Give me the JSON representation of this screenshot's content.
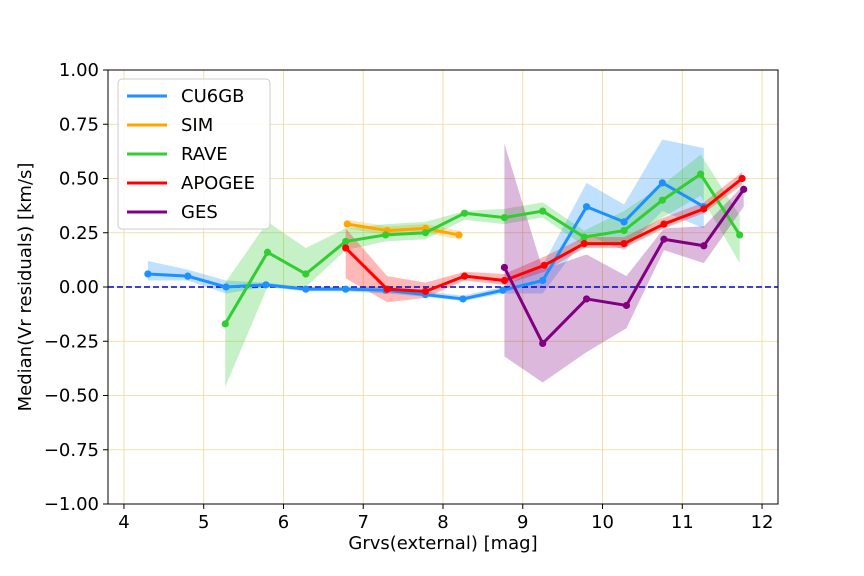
{
  "chart_data": {
    "type": "line",
    "title": "",
    "xlabel": "Grvs(external) [mag]",
    "ylabel": "Median(Vr residuals) [km/s]",
    "xlim": [
      3.8,
      12.2
    ],
    "ylim": [
      -1.0,
      1.0
    ],
    "xticks": [
      4,
      5,
      6,
      7,
      8,
      9,
      10,
      11,
      12
    ],
    "yticks": [
      -1.0,
      -0.75,
      -0.5,
      -0.25,
      0.0,
      0.25,
      0.5,
      0.75,
      1.0
    ],
    "xtick_labels": [
      "4",
      "5",
      "6",
      "7",
      "8",
      "9",
      "10",
      "11",
      "12"
    ],
    "ytick_labels": [
      "−1.00",
      "−0.75",
      "−0.50",
      "−0.25",
      "0.00",
      "0.25",
      "0.50",
      "0.75",
      "1.00"
    ],
    "grid": true,
    "grid_color": "#f0d890",
    "reference_line": {
      "y": 0.0,
      "color": "#0000cc",
      "style": "dashed"
    },
    "legend_position": "upper-left",
    "series": [
      {
        "name": "CU6GB",
        "color": "#1e90ff",
        "x": [
          4.3,
          4.8,
          5.28,
          5.78,
          6.28,
          6.78,
          7.28,
          7.78,
          8.25,
          8.75,
          9.25,
          9.8,
          10.27,
          10.75,
          11.27
        ],
        "y": [
          0.06,
          0.05,
          0.0,
          0.01,
          -0.01,
          -0.01,
          -0.015,
          -0.035,
          -0.055,
          -0.015,
          0.03,
          0.37,
          0.3,
          0.48,
          0.37
        ],
        "lower": [
          0.03,
          0.03,
          -0.03,
          0.0,
          -0.02,
          -0.02,
          -0.03,
          -0.045,
          -0.065,
          -0.03,
          -0.03,
          0.24,
          0.17,
          0.35,
          0.27
        ],
        "upper": [
          0.12,
          0.08,
          0.03,
          0.02,
          0.0,
          0.0,
          0.0,
          -0.02,
          -0.04,
          0.0,
          0.1,
          0.48,
          0.38,
          0.68,
          0.64
        ]
      },
      {
        "name": "SIM",
        "color": "#ffa500",
        "x": [
          6.8,
          7.3,
          7.78,
          8.2
        ],
        "y": [
          0.29,
          0.26,
          0.27,
          0.24
        ],
        "lower": [
          0.27,
          0.24,
          0.25,
          0.22
        ],
        "upper": [
          0.31,
          0.28,
          0.29,
          0.26
        ]
      },
      {
        "name": "RAVE",
        "color": "#32cd32",
        "x": [
          5.27,
          5.8,
          6.28,
          6.78,
          7.28,
          7.78,
          8.27,
          8.77,
          9.25,
          9.77,
          10.27,
          10.75,
          11.23,
          11.72
        ],
        "y": [
          -0.17,
          0.16,
          0.06,
          0.21,
          0.24,
          0.25,
          0.34,
          0.32,
          0.35,
          0.23,
          0.26,
          0.4,
          0.52,
          0.24
        ],
        "lower": [
          -0.46,
          0.0,
          0.0,
          0.17,
          0.21,
          0.22,
          0.31,
          0.29,
          0.32,
          0.19,
          0.19,
          0.32,
          0.42,
          0.11
        ],
        "upper": [
          0.02,
          0.3,
          0.18,
          0.27,
          0.29,
          0.3,
          0.35,
          0.36,
          0.39,
          0.26,
          0.35,
          0.47,
          0.61,
          0.33
        ]
      },
      {
        "name": "APOGEE",
        "color": "#ff0000",
        "x": [
          6.78,
          7.3,
          7.78,
          8.27,
          8.77,
          9.27,
          9.77,
          10.27,
          10.77,
          11.27,
          11.75
        ],
        "y": [
          0.18,
          -0.01,
          -0.02,
          0.05,
          0.03,
          0.1,
          0.2,
          0.2,
          0.29,
          0.36,
          0.5
        ],
        "lower": [
          0.04,
          -0.07,
          -0.05,
          0.03,
          0.01,
          0.07,
          0.18,
          0.18,
          0.27,
          0.34,
          0.47
        ],
        "upper": [
          0.27,
          0.05,
          0.02,
          0.07,
          0.06,
          0.14,
          0.23,
          0.23,
          0.32,
          0.39,
          0.53
        ]
      },
      {
        "name": "GES",
        "color": "#800080",
        "x": [
          8.77,
          9.25,
          9.8,
          10.3,
          10.77,
          11.27,
          11.77
        ],
        "y": [
          0.09,
          -0.26,
          -0.055,
          -0.085,
          0.22,
          0.19,
          0.45
        ],
        "lower": [
          -0.32,
          -0.44,
          -0.3,
          -0.19,
          0.17,
          0.11,
          0.37
        ],
        "upper": [
          0.66,
          0.08,
          0.15,
          0.05,
          0.27,
          0.28,
          0.47
        ]
      }
    ]
  }
}
